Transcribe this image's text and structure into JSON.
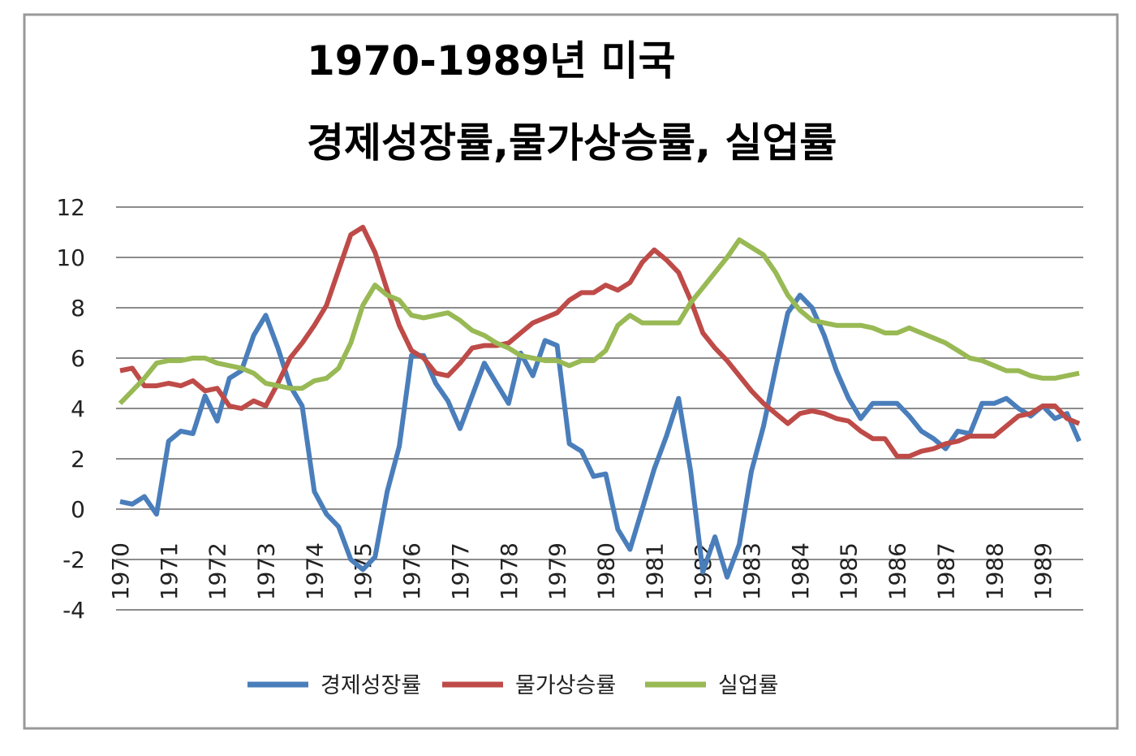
{
  "chart_data": {
    "type": "line",
    "title": "1970-1989년 미국",
    "subtitle": "경제성장률,물가상승률, 실업률",
    "categories": [
      "1970",
      null,
      null,
      null,
      "1971",
      null,
      null,
      null,
      "1972",
      null,
      null,
      null,
      "1973",
      null,
      null,
      null,
      "1974",
      null,
      null,
      null,
      "1975",
      null,
      null,
      null,
      "1976",
      null,
      null,
      null,
      "1977",
      null,
      null,
      null,
      "1978",
      null,
      null,
      null,
      "1979",
      null,
      null,
      null,
      "1980",
      null,
      null,
      null,
      "1981",
      null,
      null,
      null,
      "1982",
      null,
      null,
      null,
      "1983",
      null,
      null,
      null,
      "1984",
      null,
      null,
      null,
      "1985",
      null,
      null,
      null,
      "1986",
      null,
      null,
      null,
      "1987",
      null,
      null,
      null,
      "1988",
      null,
      null,
      null,
      "1989",
      null,
      null,
      null
    ],
    "series": [
      {
        "name": "경제성장률",
        "color": "#4a7ebb",
        "values": [
          0.3,
          0.2,
          0.5,
          -0.2,
          2.7,
          3.1,
          3.0,
          4.5,
          3.5,
          5.2,
          5.5,
          6.9,
          7.7,
          6.4,
          4.9,
          4.1,
          0.7,
          -0.2,
          -0.7,
          -2.0,
          -2.4,
          -1.9,
          0.7,
          2.5,
          6.1,
          6.1,
          5.0,
          4.3,
          3.2,
          4.5,
          5.8,
          5.0,
          4.2,
          6.2,
          5.3,
          6.7,
          6.5,
          2.6,
          2.3,
          1.3,
          1.4,
          -0.8,
          -1.6,
          0.0,
          1.6,
          2.9,
          4.4,
          1.5,
          -2.5,
          -1.1,
          -2.7,
          -1.4,
          1.5,
          3.3,
          5.6,
          7.8,
          8.5,
          8.0,
          6.9,
          5.5,
          4.4,
          3.6,
          4.2,
          4.2,
          4.2,
          3.7,
          3.1,
          2.8,
          2.4,
          3.1,
          3.0,
          4.2,
          4.2,
          4.4,
          4.0,
          3.7,
          4.1,
          3.6,
          3.8,
          2.7
        ]
      },
      {
        "name": "물가상승률",
        "color": "#be4b48",
        "values": [
          5.5,
          5.6,
          4.9,
          4.9,
          5.0,
          4.9,
          5.1,
          4.7,
          4.8,
          4.1,
          4.0,
          4.3,
          4.1,
          5.0,
          6.0,
          6.6,
          7.3,
          8.1,
          9.5,
          10.9,
          11.2,
          10.2,
          8.7,
          7.3,
          6.3,
          6.0,
          5.4,
          5.3,
          5.8,
          6.4,
          6.5,
          6.5,
          6.6,
          7.0,
          7.4,
          7.6,
          7.8,
          8.3,
          8.6,
          8.6,
          8.9,
          8.7,
          9.0,
          9.8,
          10.3,
          9.9,
          9.4,
          8.3,
          7.0,
          6.4,
          5.9,
          5.3,
          4.7,
          4.2,
          3.8,
          3.4,
          3.8,
          3.9,
          3.8,
          3.6,
          3.5,
          3.1,
          2.8,
          2.8,
          2.1,
          2.1,
          2.3,
          2.4,
          2.6,
          2.7,
          2.9,
          2.9,
          2.9,
          3.3,
          3.7,
          3.8,
          4.1,
          4.1,
          3.6,
          3.4
        ]
      },
      {
        "name": "실업률",
        "color": "#98b954",
        "values": [
          4.2,
          4.7,
          5.2,
          5.8,
          5.9,
          5.9,
          6.0,
          6.0,
          5.8,
          5.7,
          5.6,
          5.4,
          5.0,
          4.9,
          4.8,
          4.8,
          5.1,
          5.2,
          5.6,
          6.6,
          8.1,
          8.9,
          8.5,
          8.3,
          7.7,
          7.6,
          7.7,
          7.8,
          7.5,
          7.1,
          6.9,
          6.6,
          6.4,
          6.1,
          6.0,
          5.9,
          5.9,
          5.7,
          5.9,
          5.9,
          6.3,
          7.3,
          7.7,
          7.4,
          7.4,
          7.4,
          7.4,
          8.2,
          8.8,
          9.4,
          10.0,
          10.7,
          10.4,
          10.1,
          9.4,
          8.5,
          7.9,
          7.5,
          7.4,
          7.3,
          7.3,
          7.3,
          7.2,
          7.0,
          7.0,
          7.2,
          7.0,
          6.8,
          6.6,
          6.3,
          6.0,
          5.9,
          5.7,
          5.5,
          5.5,
          5.3,
          5.2,
          5.2,
          5.3,
          5.4
        ]
      }
    ],
    "ylim": [
      -4,
      12
    ],
    "yticks": [
      -4,
      -2,
      0,
      2,
      4,
      6,
      8,
      10,
      12
    ],
    "grid": true,
    "legend": "bottom"
  }
}
